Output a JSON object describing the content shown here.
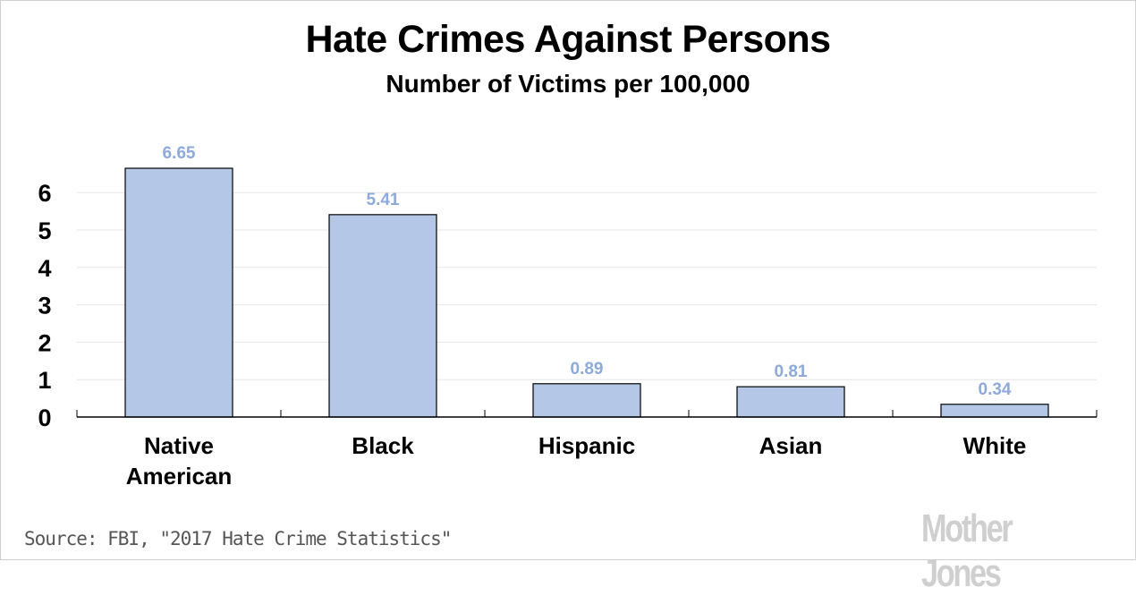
{
  "header": {
    "title": "Hate Crimes Against Persons",
    "subtitle": "Number of Victims per 100,000"
  },
  "footer": {
    "source": "Source: FBI, \"2017 Hate Crime Statistics\"",
    "logo": "Mother Jones"
  },
  "colors": {
    "bar_fill": "#b4c7e7",
    "bar_stroke": "#000000",
    "value_label": "#8eaadb",
    "gridline": "#e6e6e6",
    "axis": "#000000"
  },
  "chart_data": {
    "type": "bar",
    "title": "Hate Crimes Against Persons",
    "subtitle": "Number of Victims per 100,000",
    "categories": [
      "Native American",
      "Black",
      "Hispanic",
      "Asian",
      "White"
    ],
    "values": [
      6.65,
      5.41,
      0.89,
      0.81,
      0.34
    ],
    "value_labels": [
      "6.65",
      "5.41",
      "0.89",
      "0.81",
      "0.34"
    ],
    "xlabel": "",
    "ylabel": "",
    "ylim": [
      0,
      6
    ],
    "yticks": [
      0,
      1,
      2,
      3,
      4,
      5,
      6
    ],
    "grid": true,
    "legend": null,
    "source": "Source: FBI, \"2017 Hate Crime Statistics\""
  }
}
